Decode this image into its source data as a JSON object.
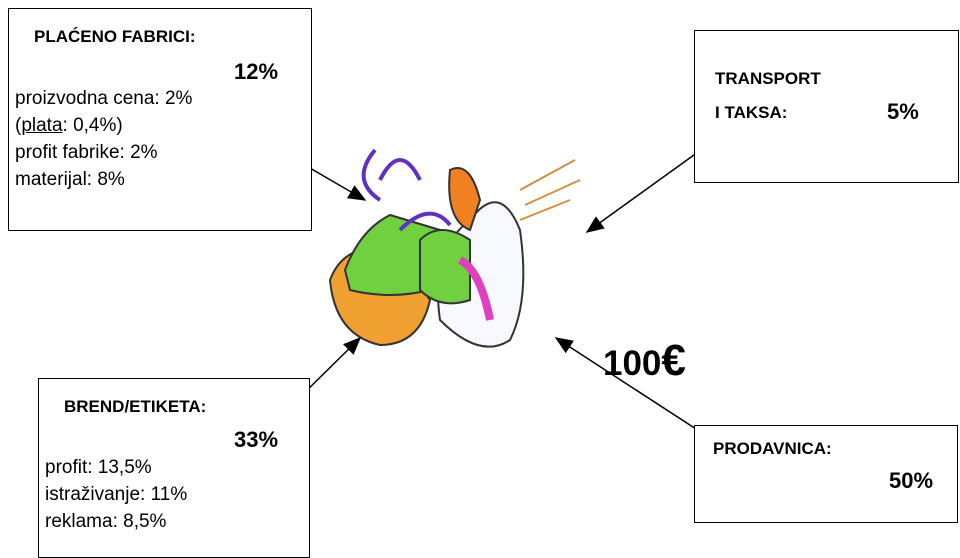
{
  "factory": {
    "title": "PLAĆENO FABRICI:",
    "percent": "12%",
    "lines": [
      "proizvodna cena: 2%",
      {
        "open": "(",
        "underlined": "plata",
        "rest": ": 0,4%)"
      },
      "profit fabrike: 2%",
      "materijal: 8%"
    ]
  },
  "transport": {
    "title_1": "TRANSPORT",
    "title_2": "I TAKSA:",
    "percent": "5%"
  },
  "brand": {
    "title": "BREND/ETIKETA:",
    "percent": "33%",
    "lines": [
      "profit: 13,5%",
      "istraživanje: 11%",
      "reklama: 8,5%"
    ]
  },
  "shop": {
    "title": "PRODAVNICA:",
    "percent": "50%"
  },
  "price": {
    "amount": "100",
    "currency": "€"
  }
}
